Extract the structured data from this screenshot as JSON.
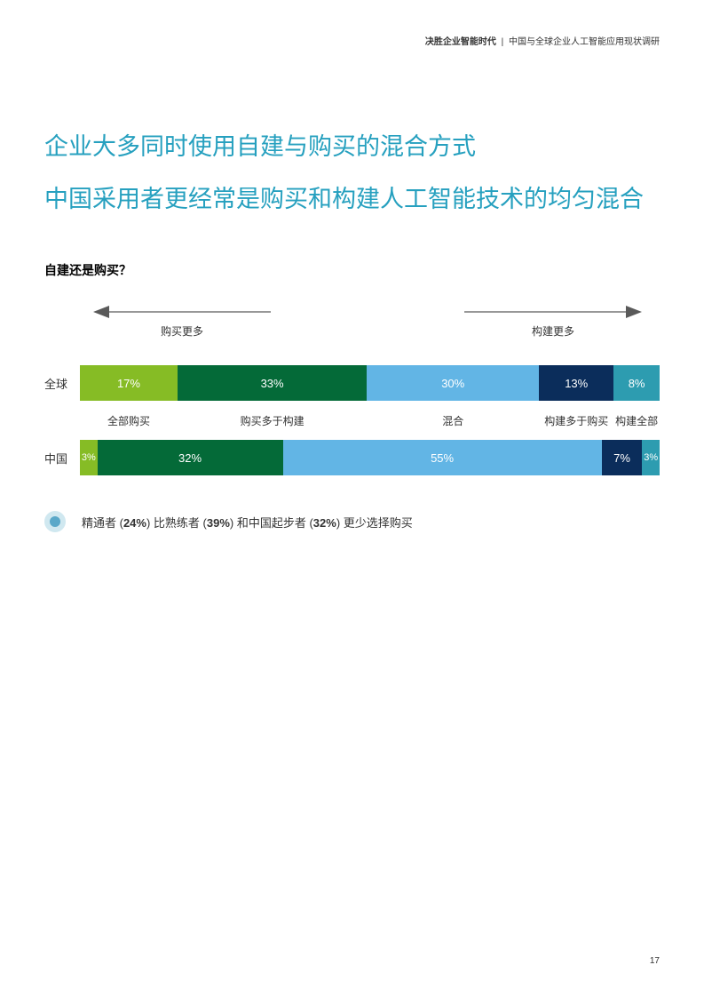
{
  "header": {
    "bold": "决胜企业智能时代",
    "rest": "中国与全球企业人工智能应用现状调研"
  },
  "heading1": "企业大多同时使用自建与购买的混合方式",
  "heading2": "中国采用者更经常是购买和构建人工智能技术的均匀混合",
  "subtitle": "自建还是购买？",
  "arrows": {
    "left_label": "购买更多",
    "right_label": "构建更多",
    "color": "#5a5a5a"
  },
  "chart": {
    "colors": {
      "c1": "#86bc25",
      "c2": "#046a38",
      "c3": "#62b5e5",
      "c4": "#0b2d5b",
      "c5": "#2d9cb0"
    },
    "categories": [
      "全部购买",
      "购买多于构建",
      "混合",
      "构建多于购买",
      "构建全部"
    ],
    "rows": [
      {
        "label": "全球",
        "segments": [
          {
            "value": 17,
            "label": "17%",
            "color": "c1"
          },
          {
            "value": 33,
            "label": "33%",
            "color": "c2"
          },
          {
            "value": 30,
            "label": "30%",
            "color": "c3"
          },
          {
            "value": 13,
            "label": "13%",
            "color": "c4"
          },
          {
            "value": 8,
            "label": "8%",
            "color": "c5"
          }
        ]
      },
      {
        "label": "中国",
        "segments": [
          {
            "value": 3,
            "label": "3%",
            "color": "c1"
          },
          {
            "value": 32,
            "label": "32%",
            "color": "c2"
          },
          {
            "value": 55,
            "label": "55%",
            "color": "c3"
          },
          {
            "value": 7,
            "label": "7%",
            "color": "c4"
          },
          {
            "value": 3,
            "label": "3%",
            "color": "c5"
          }
        ]
      }
    ]
  },
  "insight": {
    "p1": "精通者 (",
    "b1": "24%",
    "p2": ") 比熟练者 (",
    "b2": "39%",
    "p3": ") 和中国起步者 (",
    "b3": "32%",
    "p4": ") 更少选择购买"
  },
  "page_number": "17"
}
